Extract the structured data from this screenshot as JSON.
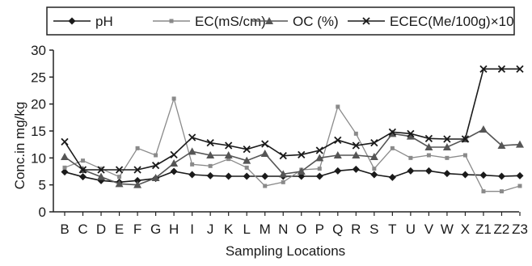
{
  "chart_data": {
    "type": "line",
    "title": "",
    "xlabel": "Sampling Locations",
    "ylabel": "Conc.in mg/kg",
    "ylim": [
      0,
      30
    ],
    "yticks": [
      0,
      5,
      10,
      15,
      20,
      25,
      30
    ],
    "legend_position": "top",
    "grid": false,
    "categories": [
      "B",
      "C",
      "D",
      "E",
      "F",
      "G",
      "H",
      "I",
      "J",
      "K",
      "L",
      "M",
      "N",
      "O",
      "P",
      "Q",
      "R",
      "S",
      "T",
      "U",
      "V",
      "W",
      "X",
      "Z1",
      "Z2",
      "Z3"
    ],
    "series": [
      {
        "name": "pH",
        "color": "#1a1a1a",
        "marker": "diamond",
        "values": [
          7.4,
          6.5,
          5.8,
          5.5,
          5.8,
          6.2,
          7.5,
          6.9,
          6.7,
          6.6,
          6.6,
          6.6,
          6.6,
          6.6,
          6.6,
          7.6,
          7.9,
          6.9,
          6.4,
          7.6,
          7.6,
          7.1,
          6.9,
          6.8,
          6.6,
          6.7
        ]
      },
      {
        "name": "EC(mS/cm)",
        "color": "#8a8a8a",
        "marker": "square",
        "values": [
          8.2,
          9.5,
          8.0,
          6.5,
          11.8,
          10.5,
          21.0,
          8.8,
          8.5,
          9.8,
          8.2,
          4.8,
          5.5,
          7.8,
          8.0,
          19.5,
          14.5,
          8.0,
          11.8,
          10.0,
          10.5,
          10.0,
          10.5,
          3.8,
          3.8,
          4.8
        ]
      },
      {
        "name": "OC (%)",
        "color": "#555555",
        "marker": "triangle",
        "values": [
          10.2,
          7.8,
          6.5,
          5.2,
          5.0,
          6.3,
          9.0,
          11.2,
          10.5,
          10.5,
          9.5,
          10.8,
          7.0,
          7.5,
          10.0,
          10.5,
          10.5,
          10.2,
          14.5,
          14.0,
          12.0,
          12.0,
          13.5,
          15.3,
          12.3,
          12.5
        ]
      },
      {
        "name": "ECEC(Me/100g)×10",
        "color": "#1a1a1a",
        "marker": "x",
        "values": [
          13.0,
          7.8,
          7.8,
          7.8,
          7.8,
          8.6,
          10.6,
          13.8,
          12.8,
          12.3,
          11.6,
          12.6,
          10.4,
          10.6,
          11.4,
          13.3,
          12.3,
          12.8,
          14.8,
          14.5,
          13.6,
          13.5,
          13.5,
          26.5,
          26.5,
          26.5
        ]
      }
    ]
  }
}
